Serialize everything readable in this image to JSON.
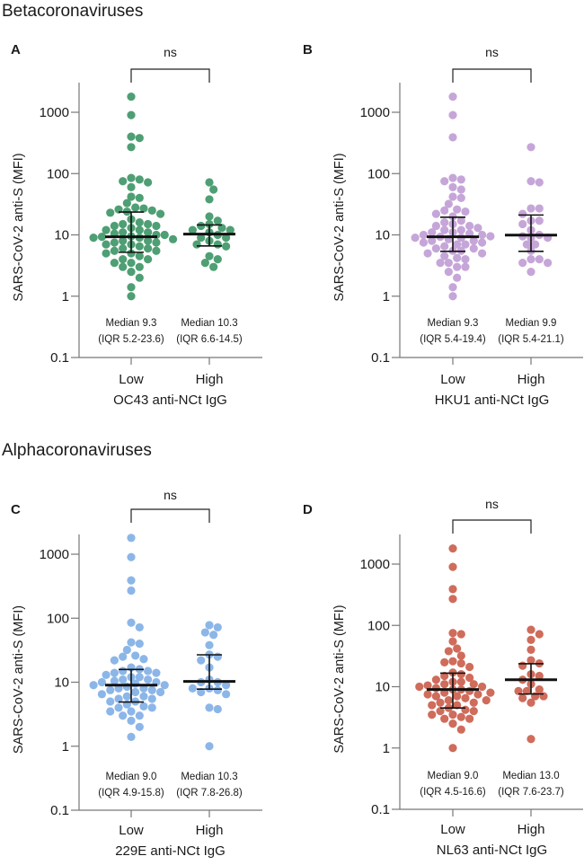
{
  "sections": [
    "Betacoronaviruses",
    "Alphacoronaviruses"
  ],
  "chart_data": [
    {
      "type": "scatter",
      "panel": "A",
      "title": "",
      "color": "#4f9f74",
      "ylabel": "SARS-CoV-2 anti-S (MFI)",
      "xlabel": "OC43 anti-NCt IgG",
      "yscale": "log",
      "ylim": [
        0.1,
        3000
      ],
      "yticks": [
        "0.1",
        "1",
        "10",
        "100",
        "1000"
      ],
      "categories": [
        "Low",
        "High"
      ],
      "significance": "ns",
      "groups": [
        {
          "name": "Low",
          "median": 9.3,
          "iqr": [
            5.2,
            23.6
          ],
          "annotation": [
            "Median 9.3",
            "(IQR 5.2-23.6)"
          ],
          "values": [
            1800,
            900,
            400,
            380,
            270,
            85,
            80,
            75,
            72,
            60,
            42,
            40,
            33,
            28,
            27,
            26,
            25,
            24,
            23,
            22,
            18,
            16,
            15,
            15,
            14,
            14,
            13,
            12,
            12,
            11,
            11,
            10.5,
            10,
            10,
            9.5,
            9.3,
            9,
            9,
            8.5,
            8,
            8,
            7.5,
            7.5,
            7,
            7,
            6.5,
            6,
            6,
            5.5,
            5.5,
            5,
            5,
            4.5,
            4,
            4,
            3.5,
            3.5,
            3,
            3,
            2.5,
            2,
            1.4,
            1
          ]
        },
        {
          "name": "High",
          "median": 10.3,
          "iqr": [
            6.6,
            14.5
          ],
          "annotation": [
            "Median 10.3",
            "(IQR 6.6-14.5)"
          ],
          "values": [
            72,
            55,
            38,
            20,
            17,
            15,
            14,
            13,
            12,
            12,
            11,
            10,
            9,
            9,
            8,
            7,
            7,
            6.5,
            4.5,
            4,
            3.5,
            3
          ]
        }
      ]
    },
    {
      "type": "scatter",
      "panel": "B",
      "title": "",
      "color": "#c6a6d8",
      "ylabel": "SARS-CoV-2 anti-S (MFI)",
      "xlabel": "HKU1 anti-NCt IgG",
      "yscale": "log",
      "ylim": [
        0.1,
        3000
      ],
      "yticks": [
        "0.1",
        "1",
        "10",
        "100",
        "1000"
      ],
      "categories": [
        "Low",
        "High"
      ],
      "significance": "ns",
      "groups": [
        {
          "name": "Low",
          "median": 9.3,
          "iqr": [
            5.4,
            19.4
          ],
          "annotation": [
            "Median 9.3",
            "(IQR 5.4-19.4)"
          ],
          "values": [
            1800,
            900,
            390,
            85,
            80,
            75,
            60,
            55,
            42,
            40,
            32,
            26,
            25,
            24,
            22,
            20,
            17,
            16,
            15,
            14,
            14,
            13,
            12,
            12,
            11,
            11,
            10.5,
            10,
            10,
            9.5,
            9.3,
            9,
            9,
            8.5,
            8,
            8,
            7.5,
            7.5,
            7,
            7,
            6.5,
            6,
            6,
            5.5,
            5.5,
            5,
            5,
            4.5,
            4.2,
            4,
            3.5,
            3.5,
            3,
            3,
            2.5,
            2,
            1.4,
            1
          ]
        },
        {
          "name": "High",
          "median": 9.9,
          "iqr": [
            5.4,
            21.1
          ],
          "annotation": [
            "Median 9.9",
            "(IQR 5.4-21.1)"
          ],
          "values": [
            270,
            75,
            72,
            27,
            27,
            22,
            17,
            17,
            15,
            12,
            10,
            9.5,
            9,
            9,
            7,
            7,
            5.5,
            4,
            4,
            3.5,
            3.5,
            2.5
          ]
        }
      ]
    },
    {
      "type": "scatter",
      "panel": "C",
      "title": "",
      "color": "#8cb6e8",
      "ylabel": "SARS-CoV-2 anti-S (MFI)",
      "xlabel": "229E anti-NCt IgG",
      "yscale": "log",
      "ylim": [
        0.1,
        3000
      ],
      "yticks": [
        "0.1",
        "1",
        "10",
        "100",
        "1000"
      ],
      "categories": [
        "Low",
        "High"
      ],
      "significance": "ns",
      "groups": [
        {
          "name": "Low",
          "median": 9.0,
          "iqr": [
            4.9,
            15.8
          ],
          "annotation": [
            "Median 9.0",
            "(IQR 4.9-15.8)"
          ],
          "values": [
            1800,
            900,
            390,
            270,
            85,
            72,
            42,
            40,
            32,
            26,
            25,
            23,
            22,
            17,
            16,
            15,
            15,
            14,
            14,
            13,
            12,
            12,
            11,
            11,
            10.5,
            10,
            10,
            9.5,
            9,
            9,
            8.5,
            8,
            8,
            7.5,
            7.5,
            7,
            7,
            6.5,
            6,
            6,
            5.5,
            5.5,
            5,
            5,
            4.5,
            4.2,
            4,
            4,
            3.5,
            3.5,
            3,
            3,
            2.5,
            2,
            1.4
          ]
        },
        {
          "name": "High",
          "median": 10.3,
          "iqr": [
            7.8,
            26.8
          ],
          "annotation": [
            "Median 10.3",
            "(IQR 7.8-26.8)"
          ],
          "values": [
            78,
            72,
            60,
            55,
            38,
            27,
            25,
            22,
            17,
            11,
            10,
            10,
            9,
            8,
            8,
            7.5,
            7,
            6.5,
            4,
            3.8,
            1
          ]
        }
      ]
    },
    {
      "type": "scatter",
      "panel": "D",
      "title": "",
      "color": "#cf6c5b",
      "ylabel": "SARS-CoV-2 anti-S (MFI)",
      "xlabel": "NL63 anti-NCt IgG",
      "yscale": "log",
      "ylim": [
        0.1,
        3000
      ],
      "yticks": [
        "0.1",
        "1",
        "10",
        "100",
        "1000"
      ],
      "categories": [
        "Low",
        "High"
      ],
      "significance": "ns",
      "groups": [
        {
          "name": "Low",
          "median": 9.0,
          "iqr": [
            4.5,
            16.6
          ],
          "annotation": [
            "Median 9.0",
            "(IQR 4.5-16.6)"
          ],
          "values": [
            1800,
            900,
            390,
            270,
            75,
            72,
            55,
            42,
            38,
            32,
            26,
            25,
            24,
            21,
            17,
            16,
            15,
            14,
            13,
            12,
            12,
            11,
            11,
            10.5,
            10,
            10,
            9.5,
            9,
            9,
            8.5,
            8,
            8,
            7.5,
            7.5,
            7,
            7,
            6.5,
            6,
            6,
            5.5,
            5.5,
            5,
            5,
            4.5,
            4.2,
            4,
            4,
            3.5,
            3.5,
            3.2,
            3,
            3,
            2.5,
            2,
            1
          ]
        },
        {
          "name": "High",
          "median": 13.0,
          "iqr": [
            7.6,
            23.7
          ],
          "annotation": [
            "Median 13.0",
            "(IQR 7.6-23.7)"
          ],
          "values": [
            85,
            72,
            58,
            40,
            27,
            24,
            22,
            16,
            15,
            13,
            11,
            9,
            8.5,
            8.5,
            7,
            7,
            6.5,
            5.5,
            1.4
          ]
        }
      ]
    }
  ]
}
